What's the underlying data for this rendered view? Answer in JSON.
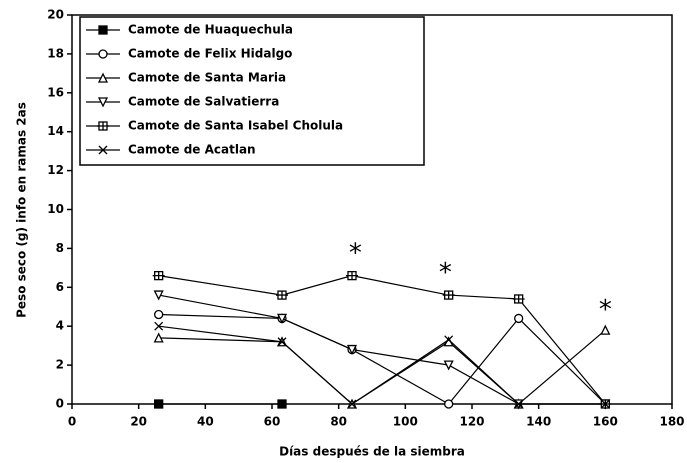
{
  "chart_data": {
    "type": "line",
    "x_label": "Días después de la siembra",
    "y_label": "Peso seco (g) info en ramas 2as",
    "x": [
      26,
      63,
      84,
      113,
      134,
      160
    ],
    "series": [
      {
        "name": "Camote de Huaquechula",
        "marker": "filled-square",
        "color": "#000000",
        "values": [
          0,
          0,
          null,
          null,
          null,
          null
        ]
      },
      {
        "name": "Camote de Felix Hidalgo",
        "marker": "circle",
        "color": "#000000",
        "values": [
          4.6,
          4.4,
          2.8,
          0,
          4.4,
          0
        ]
      },
      {
        "name": "Camote de Santa Maria",
        "marker": "triangle-up",
        "color": "#000000",
        "values": [
          3.4,
          3.2,
          0,
          3.2,
          0,
          3.8
        ]
      },
      {
        "name": "Camote de Salvatierra",
        "marker": "triangle-down",
        "color": "#000000",
        "values": [
          5.6,
          4.4,
          2.8,
          2.0,
          0,
          0
        ]
      },
      {
        "name": "Camote de Santa Isabel Cholula",
        "marker": "plus",
        "color": "#000000",
        "values": [
          6.6,
          5.6,
          6.6,
          5.6,
          5.4,
          0
        ]
      },
      {
        "name": "Camote de Acatlan",
        "marker": "cross",
        "color": "#000000",
        "values": [
          4.0,
          3.2,
          0,
          3.3,
          0,
          0
        ]
      }
    ],
    "annotations": [
      {
        "text": "*",
        "x": 85,
        "y": 7.7
      },
      {
        "text": "*",
        "x": 112,
        "y": 6.7
      },
      {
        "text": "*",
        "x": 160,
        "y": 4.8
      }
    ],
    "xlim": [
      0,
      180
    ],
    "xticks": [
      0,
      20,
      40,
      60,
      80,
      100,
      120,
      140,
      160,
      180
    ],
    "ylim": [
      0,
      20
    ],
    "yticks": [
      0,
      2,
      4,
      6,
      8,
      10,
      12,
      14,
      16,
      18,
      20
    ],
    "legend": "upper left"
  }
}
